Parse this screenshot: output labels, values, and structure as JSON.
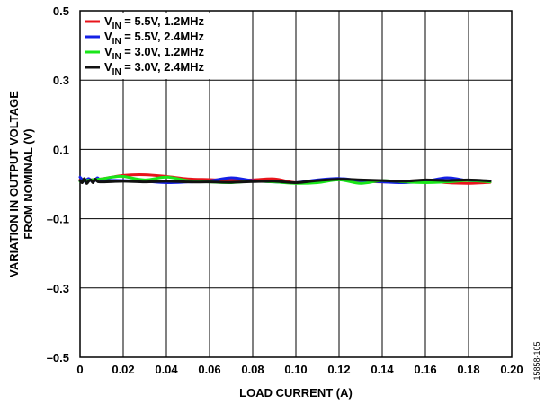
{
  "chart_data": {
    "type": "line",
    "xlabel": "LOAD CURRENT (A)",
    "ylabel": [
      "VARIATION IN OUTPUT VOLTAGE",
      "FROM NOMINAL (V)"
    ],
    "xlim": [
      0,
      0.2
    ],
    "ylim": [
      -0.5,
      0.5
    ],
    "x_ticks": [
      0,
      0.02,
      0.04,
      0.06,
      0.08,
      0.1,
      0.12,
      0.14,
      0.16,
      0.18,
      0.2
    ],
    "x_tick_labels": [
      "0",
      "0.02",
      "0.04",
      "0.06",
      "0.08",
      "0.10",
      "0.12",
      "0.14",
      "0.16",
      "0.18",
      "0.20"
    ],
    "y_ticks": [
      -0.5,
      -0.3,
      -0.1,
      0.1,
      0.3,
      0.5
    ],
    "y_tick_labels": [
      "–0.5",
      "–0.3",
      "–0.1",
      "0.1",
      "0.3",
      "0.5"
    ],
    "grid": true,
    "legend_position": "top-left",
    "series": [
      {
        "name": "V_IN = 5.5V, 1.2MHz",
        "label_sub": "IN",
        "label_rest": " = 5.5V, 1.2MHz",
        "color": "#e8141b",
        "x": [
          0.0,
          0.003,
          0.006,
          0.01,
          0.02,
          0.03,
          0.04,
          0.05,
          0.06,
          0.07,
          0.08,
          0.09,
          0.1,
          0.11,
          0.12,
          0.13,
          0.14,
          0.15,
          0.16,
          0.17,
          0.18,
          0.19
        ],
        "y": [
          0.012,
          0.01,
          0.013,
          0.015,
          0.025,
          0.027,
          0.022,
          0.015,
          0.013,
          0.011,
          0.012,
          0.015,
          0.004,
          0.01,
          0.013,
          0.009,
          0.006,
          0.008,
          0.01,
          0.004,
          0.002,
          0.005
        ]
      },
      {
        "name": "V_IN = 5.5V, 2.4MHz",
        "label_sub": "IN",
        "label_rest": " = 5.5V, 2.4MHz",
        "color": "#1420e6",
        "x": [
          0.0,
          0.002,
          0.004,
          0.006,
          0.008,
          0.01,
          0.02,
          0.03,
          0.04,
          0.05,
          0.06,
          0.07,
          0.08,
          0.09,
          0.1,
          0.11,
          0.12,
          0.13,
          0.14,
          0.15,
          0.16,
          0.17,
          0.18,
          0.19
        ],
        "y": [
          0.02,
          0.008,
          0.016,
          0.006,
          0.018,
          0.012,
          0.01,
          0.008,
          0.004,
          0.006,
          0.009,
          0.018,
          0.01,
          0.006,
          0.004,
          0.012,
          0.016,
          0.01,
          0.006,
          0.004,
          0.008,
          0.018,
          0.01,
          0.008
        ]
      },
      {
        "name": "V_IN = 3.0V, 1.2MHz",
        "label_sub": "IN",
        "label_rest": " = 3.0V, 1.2MHz",
        "color": "#19e619",
        "x": [
          0.0,
          0.005,
          0.01,
          0.015,
          0.02,
          0.03,
          0.04,
          0.05,
          0.06,
          0.07,
          0.08,
          0.09,
          0.1,
          0.11,
          0.12,
          0.13,
          0.14,
          0.15,
          0.16,
          0.17,
          0.18,
          0.19
        ],
        "y": [
          0.008,
          0.012,
          0.015,
          0.02,
          0.022,
          0.012,
          0.02,
          0.01,
          0.006,
          0.004,
          0.008,
          0.006,
          0.002,
          0.004,
          0.012,
          0.002,
          0.01,
          0.006,
          0.004,
          0.006,
          0.01,
          0.006
        ]
      },
      {
        "name": "V_IN = 3.0V, 2.4MHz",
        "label_sub": "IN",
        "label_rest": " = 3.0V, 2.4MHz",
        "color": "#111111",
        "x": [
          0.0,
          0.001,
          0.002,
          0.003,
          0.004,
          0.005,
          0.006,
          0.007,
          0.008,
          0.01,
          0.02,
          0.03,
          0.04,
          0.05,
          0.06,
          0.07,
          0.08,
          0.09,
          0.1,
          0.11,
          0.12,
          0.13,
          0.14,
          0.15,
          0.16,
          0.17,
          0.18,
          0.19
        ],
        "y": [
          0.01,
          0.004,
          0.016,
          0.002,
          0.008,
          0.012,
          0.004,
          0.014,
          0.008,
          0.006,
          0.008,
          0.006,
          0.008,
          0.006,
          0.006,
          0.005,
          0.007,
          0.008,
          0.004,
          0.01,
          0.014,
          0.012,
          0.01,
          0.008,
          0.012,
          0.01,
          0.012,
          0.009
        ]
      }
    ]
  },
  "figure_code": "15858-105"
}
